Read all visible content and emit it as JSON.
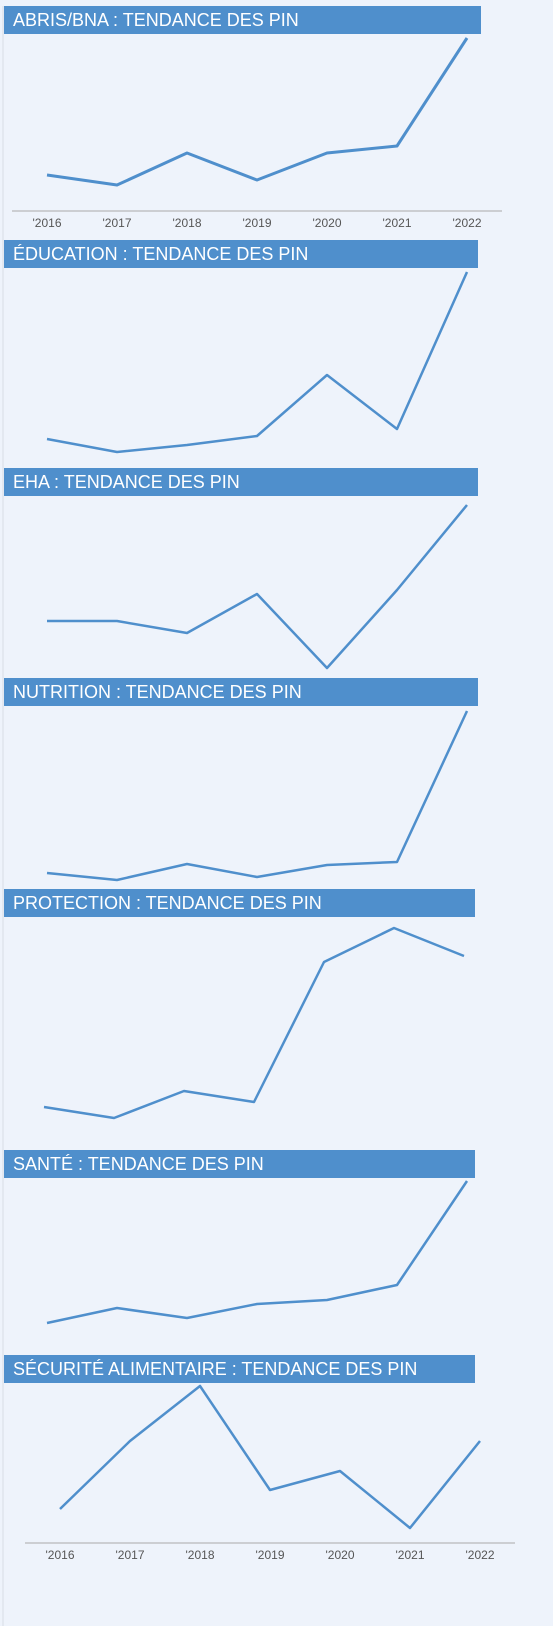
{
  "chart_data": [
    {
      "type": "line",
      "title": "ABRIS/BNA : TENDANCE DES PIN",
      "color": "#4f8fcc",
      "categories": [
        "'2016",
        "'2017",
        "'2018",
        "'2019",
        "'2020",
        "'2021",
        "'2022"
      ],
      "values": [
        36,
        26,
        58,
        31,
        58,
        65,
        173
      ]
    },
    {
      "type": "line",
      "title": "ÉDUCATION : TENDANCE DES PIN",
      "color": "#4f8fcc",
      "values": [
        21,
        8,
        15,
        24,
        85,
        31,
        188
      ]
    },
    {
      "type": "line",
      "title": "EHA : TENDANCE DES PIN",
      "color": "#4f8fcc",
      "values": [
        59,
        59,
        47,
        86,
        12,
        90,
        175
      ]
    },
    {
      "type": "line",
      "title": "NUTRITION : TENDANCE DES PIN",
      "color": "#4f8fcc",
      "values": [
        17,
        10,
        26,
        13,
        25,
        28,
        179
      ]
    },
    {
      "type": "line",
      "title": "PROTECTION : TENDANCE DES PIN",
      "color": "#4f8fcc",
      "values": [
        23,
        12,
        39,
        28,
        168,
        202,
        174
      ]
    },
    {
      "type": "line",
      "title": "SANTÉ : TENDANCE DES PIN",
      "color": "#4f8fcc",
      "values": [
        17,
        32,
        22,
        36,
        40,
        55,
        159
      ]
    },
    {
      "type": "line",
      "title": "SÉCURITÉ ALIMENTAIRE : TENDANCE DES PIN",
      "color": "#4f8fcc",
      "categories": [
        "'2016",
        "'2017",
        "'2018",
        "'2019",
        "'2020",
        "'2021",
        "'2022"
      ],
      "values": [
        34,
        102,
        157,
        53,
        72,
        15,
        102
      ]
    }
  ]
}
